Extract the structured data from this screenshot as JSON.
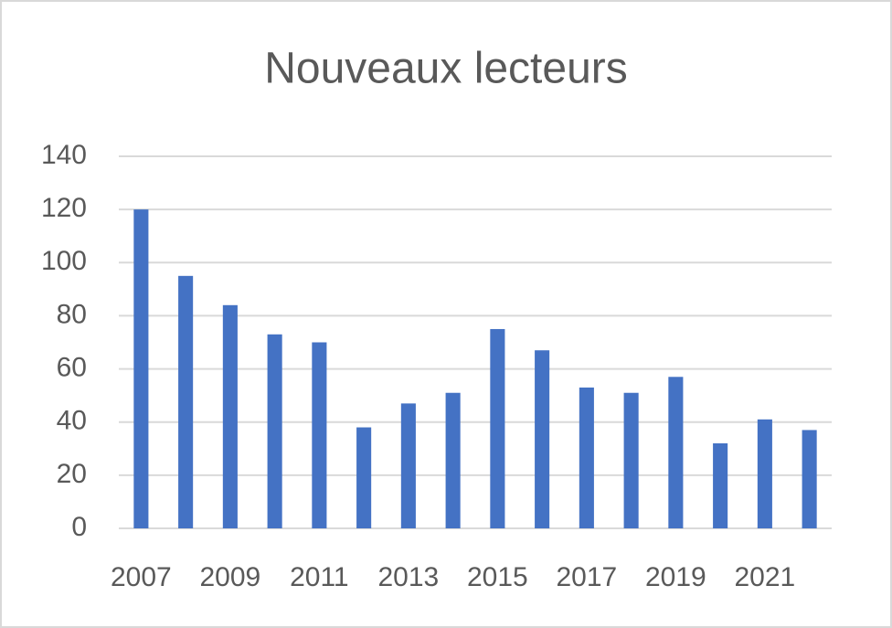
{
  "chart_data": {
    "type": "bar",
    "title": "Nouveaux lecteurs",
    "categories": [
      "2007",
      null,
      "2009",
      null,
      "2011",
      null,
      "2013",
      null,
      "2015",
      null,
      "2017",
      null,
      "2019",
      null,
      "2021",
      null
    ],
    "values": [
      120,
      95,
      84,
      73,
      70,
      38,
      47,
      51,
      75,
      67,
      53,
      51,
      57,
      32,
      41,
      37
    ],
    "color": "#4472c4",
    "ylim": [
      0,
      140
    ],
    "yticks": [
      0,
      20,
      40,
      60,
      80,
      100,
      120,
      140
    ],
    "grid": true
  }
}
